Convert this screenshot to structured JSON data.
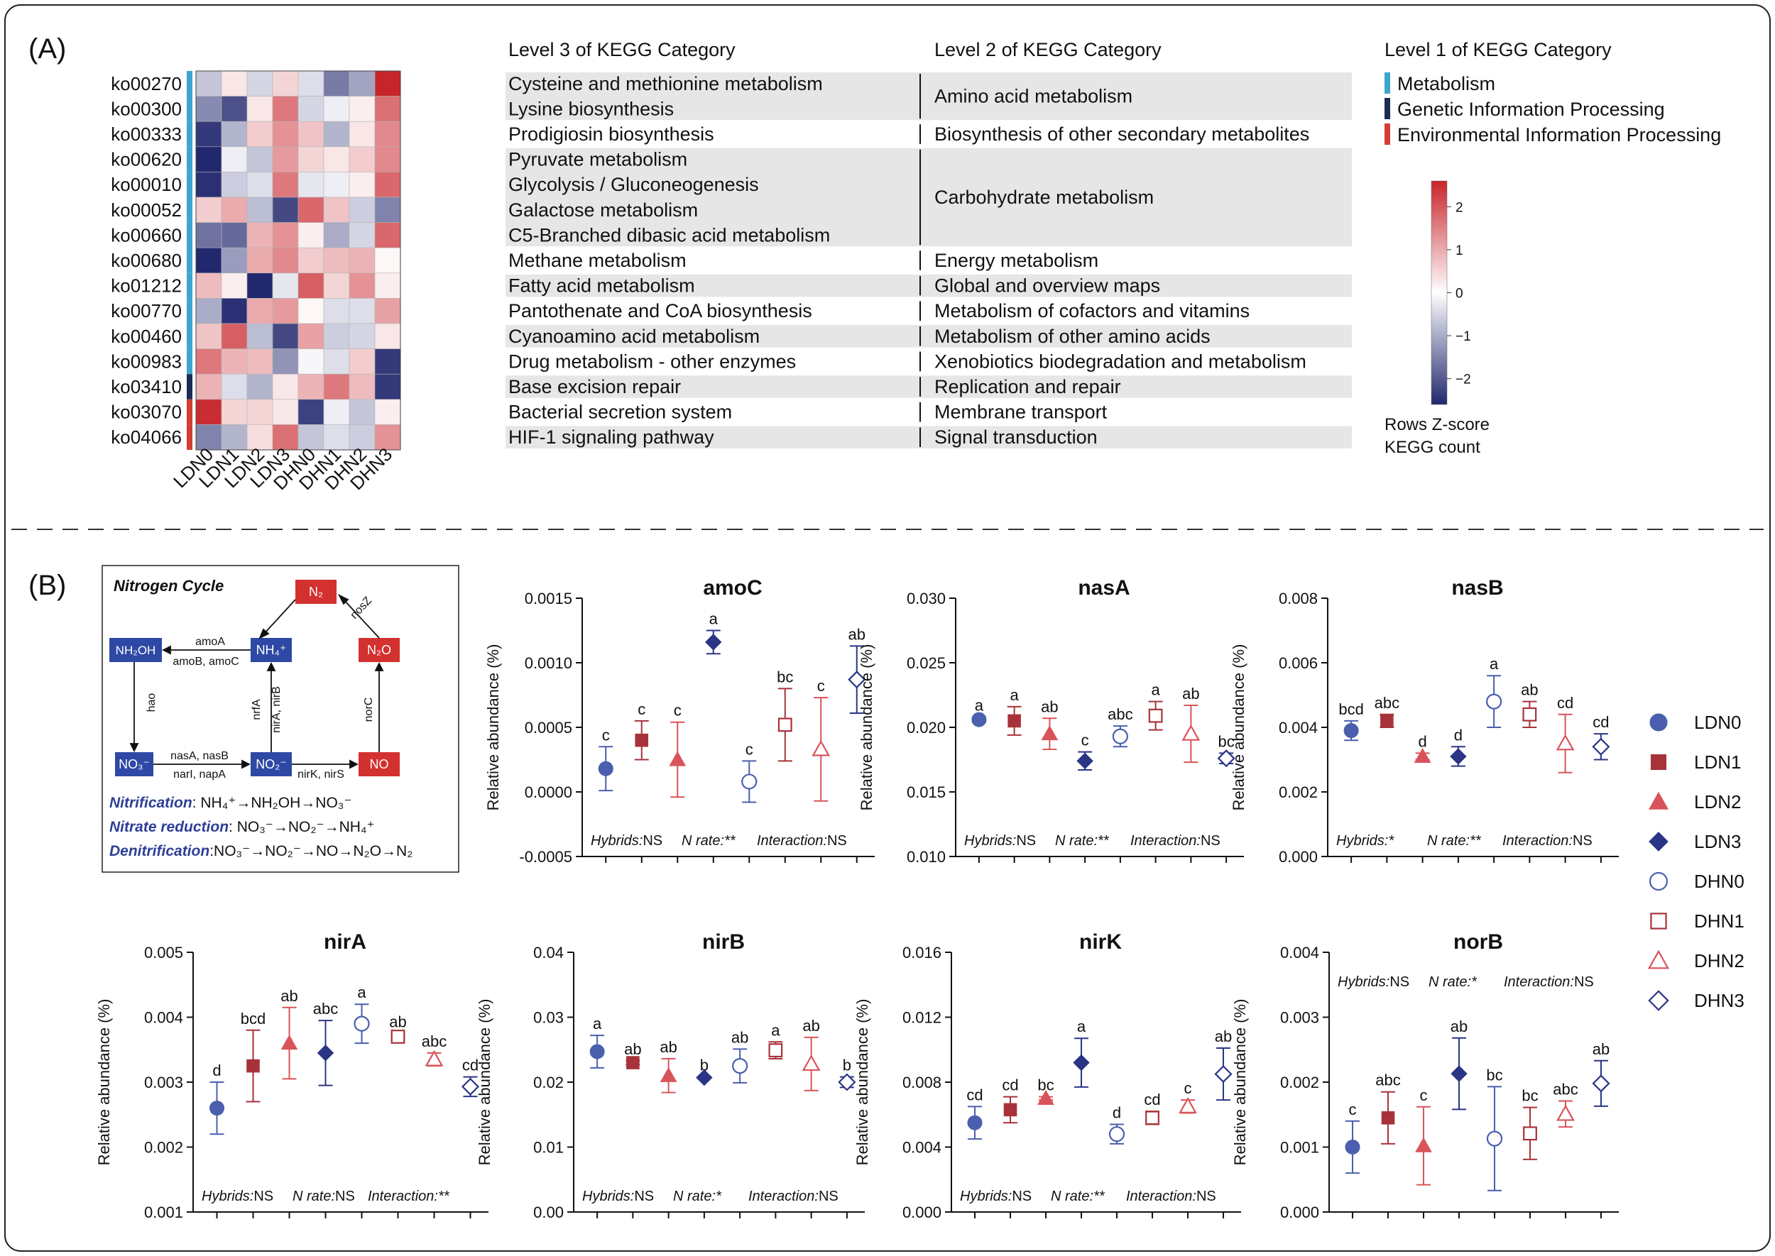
{
  "panel_a": {
    "label": "(A)",
    "header_level3": "Level 3 of KEGG Category",
    "header_level2": "Level 2 of KEGG Category",
    "header_level1": "Level 1 of KEGG Category",
    "rows": [
      {
        "id": "ko00270",
        "level1": "Metabolism",
        "pathway": "Cysteine and methionine metabolism",
        "z": [
          -0.7,
          0.3,
          -0.5,
          0.5,
          -0.4,
          -1.6,
          -1.1,
          2.6
        ]
      },
      {
        "id": "ko00300",
        "level1": "Metabolism",
        "pathway": "Lysine biosynthesis",
        "z": [
          -1.4,
          -2.1,
          0.3,
          1.6,
          -0.5,
          -0.2,
          0.2,
          1.7
        ]
      },
      {
        "id": "ko00333",
        "level1": "Metabolism",
        "pathway": "Prodigiosin biosynthesis",
        "z": [
          -2.4,
          -0.9,
          0.6,
          1.3,
          0.7,
          -0.9,
          0.3,
          1.4
        ]
      },
      {
        "id": "ko00620",
        "level1": "Metabolism",
        "pathway": "Pyruvate metabolism",
        "z": [
          -2.6,
          -0.2,
          -0.7,
          1.2,
          0.5,
          0.3,
          0.6,
          1.4
        ]
      },
      {
        "id": "ko00010",
        "level1": "Metabolism",
        "pathway": "Glycolysis / Gluconeogenesis",
        "z": [
          -2.5,
          -0.6,
          -0.4,
          1.6,
          -0.3,
          -0.2,
          0.2,
          1.8
        ]
      },
      {
        "id": "ko00052",
        "level1": "Metabolism",
        "pathway": "Galactose metabolism",
        "z": [
          0.6,
          1.0,
          -0.8,
          -2.2,
          1.8,
          0.7,
          -0.6,
          -1.5
        ]
      },
      {
        "id": "ko00660",
        "level1": "Metabolism",
        "pathway": "C5-Branched dibasic acid metabolism",
        "z": [
          -1.7,
          -1.8,
          0.9,
          1.3,
          0.2,
          -1.0,
          -0.5,
          1.8
        ]
      },
      {
        "id": "ko00680",
        "level1": "Metabolism",
        "pathway": "Methane metabolism",
        "z": [
          -2.6,
          -1.2,
          1.0,
          1.4,
          0.6,
          0.8,
          0.9,
          0.1
        ]
      },
      {
        "id": "ko01212",
        "level1": "Metabolism",
        "pathway": "Fatty acid metabolism",
        "z": [
          0.8,
          0.2,
          -2.6,
          -0.3,
          1.9,
          0.5,
          1.3,
          0.2
        ]
      },
      {
        "id": "ko00770",
        "level1": "Metabolism",
        "pathway": "Pantothenate and CoA biosynthesis",
        "z": [
          -1.0,
          -2.5,
          1.0,
          1.2,
          0.1,
          -0.4,
          -0.4,
          1.1
        ]
      },
      {
        "id": "ko00460",
        "level1": "Metabolism",
        "pathway": "Cyanoamino acid metabolism",
        "z": [
          0.7,
          1.9,
          -0.8,
          -2.2,
          1.1,
          -0.6,
          -0.5,
          0.3
        ]
      },
      {
        "id": "ko00983",
        "level1": "Metabolism",
        "pathway": "Drug metabolism - other enzymes",
        "z": [
          1.6,
          0.9,
          0.8,
          -1.3,
          -0.1,
          -0.4,
          0.6,
          -2.4
        ]
      },
      {
        "id": "ko03410",
        "level1": "Genetic Information Processing",
        "pathway": "Base excision repair",
        "z": [
          0.9,
          -0.4,
          -0.9,
          0.3,
          0.9,
          1.6,
          0.8,
          -2.4
        ]
      },
      {
        "id": "ko03070",
        "level1": "Environmental Information Processing",
        "pathway": "Bacterial secretion system",
        "z": [
          2.5,
          0.5,
          0.5,
          0.3,
          -2.3,
          -0.2,
          -0.7,
          0.2
        ]
      },
      {
        "id": "ko04066",
        "level1": "Environmental Information Processing",
        "pathway": "HIF-1 signaling pathway",
        "z": [
          -1.5,
          -0.9,
          0.4,
          1.7,
          -0.7,
          -0.4,
          -0.6,
          1.3
        ]
      }
    ],
    "level2_groups": [
      {
        "label": "Amino acid metabolism",
        "start": 0,
        "end": 1
      },
      {
        "label": "Biosynthesis of other secondary metabolites",
        "start": 2,
        "end": 2
      },
      {
        "label": "Carbohydrate metabolism",
        "start": 3,
        "end": 6
      },
      {
        "label": "Energy metabolism",
        "start": 7,
        "end": 7
      },
      {
        "label": "Global and overview maps",
        "start": 8,
        "end": 8
      },
      {
        "label": "Metabolism of cofactors and vitamins",
        "start": 9,
        "end": 9
      },
      {
        "label": "Metabolism of other amino acids",
        "start": 10,
        "end": 10
      },
      {
        "label": "Xenobiotics biodegradation and metabolism",
        "start": 11,
        "end": 11
      },
      {
        "label": "Replication and repair",
        "start": 12,
        "end": 12
      },
      {
        "label": "Membrane transport",
        "start": 13,
        "end": 13
      },
      {
        "label": "Signal transduction",
        "start": 14,
        "end": 14
      }
    ],
    "columns": [
      "LDN0",
      "LDN1",
      "LDN2",
      "LDN3",
      "DHN0",
      "DHN1",
      "DHN2",
      "DHN3"
    ],
    "level1_legend": [
      {
        "label": "Metabolism",
        "color": "#3da5d0"
      },
      {
        "label": "Genetic Information Processing",
        "color": "#1c2c55"
      },
      {
        "label": "Environmental Information Processing",
        "color": "#d33c32"
      }
    ],
    "colorbar": {
      "ticks": [
        "2",
        "1",
        "0",
        "−1",
        "−2"
      ],
      "tick_values": [
        2,
        1,
        0,
        -1,
        -2
      ],
      "range": [
        -2.6,
        2.6
      ],
      "label1": "Rows Z-score",
      "label2": "KEGG count",
      "low_color": "#22286e",
      "mid_color": "#ffffff",
      "high_color": "#c8242b"
    }
  },
  "panel_b": {
    "label": "(B)",
    "ncycle": {
      "title": "Nitrogen Cycle",
      "nodes": {
        "n2": "N₂",
        "nh4": "NH₄⁺",
        "n2o": "N₂O",
        "nh2oh": "NH₂OH",
        "no3": "NO₃⁻",
        "no2": "NO₂⁻",
        "no": "NO"
      },
      "genes": {
        "amoA": "amoA",
        "amoBC": "amoB, amoC",
        "hao": "hao",
        "nasAB": "nasA, nasB",
        "narnap": "narI, napA",
        "nirKS": "nirK, nirS",
        "nrfA": "nrfA",
        "nirAB": "nirA, nirB",
        "norC": "norC",
        "nosZ": "nosZ"
      },
      "nitrification_label": "Nitrification",
      "nitrification_eq": ": NH₄⁺→NH₂OH→NO₃⁻",
      "reduction_label": "Nitrate reduction",
      "reduction_eq": ":  NO₃⁻→NO₂⁻→NH₄⁺",
      "denitrification_label": "Denitrification",
      "denitrification_eq": ":NO₃⁻→NO₂⁻→NO→N₂O→N₂"
    },
    "legend": [
      {
        "label": "LDN0",
        "marker": "circle",
        "fill": true,
        "color": "#4a5fad"
      },
      {
        "label": "LDN1",
        "marker": "square",
        "fill": true,
        "color": "#a8323a"
      },
      {
        "label": "LDN2",
        "marker": "triangle",
        "fill": true,
        "color": "#d9545a"
      },
      {
        "label": "LDN3",
        "marker": "diamond",
        "fill": true,
        "color": "#2a3585"
      },
      {
        "label": "DHN0",
        "marker": "circle",
        "fill": false,
        "color": "#4a5fad"
      },
      {
        "label": "DHN1",
        "marker": "square",
        "fill": false,
        "color": "#a8323a"
      },
      {
        "label": "DHN2",
        "marker": "triangle",
        "fill": false,
        "color": "#d9545a"
      },
      {
        "label": "DHN3",
        "marker": "diamond",
        "fill": false,
        "color": "#2a3585"
      }
    ]
  },
  "chart_data": [
    {
      "type": "scatter",
      "title": "amoC",
      "ylabel": "Relative abundance (%)",
      "ylim": [
        -0.0005,
        0.0015
      ],
      "yticks": [
        -0.0005,
        0,
        0.0005,
        0.001,
        0.0015
      ],
      "ytick_labels": [
        "-0.0005",
        "0.0000",
        "0.0005",
        "0.0010",
        "0.0015"
      ],
      "categories": [
        "LDN0",
        "LDN1",
        "LDN2",
        "LDN3",
        "DHN0",
        "DHN1",
        "DHN2",
        "DHN3"
      ],
      "values": [
        0.00018,
        0.0004,
        0.00025,
        0.00116,
        8e-05,
        0.00052,
        0.00033,
        0.00087
      ],
      "errors": [
        0.00017,
        0.00015,
        0.00029,
        9e-05,
        0.00016,
        0.00028,
        0.0004,
        0.00026
      ],
      "letters": [
        "c",
        "c",
        "c",
        "a",
        "c",
        "bc",
        "c",
        "ab"
      ],
      "stats": {
        "hybrids": "Hybrids:",
        "hybrids_sig": "NS",
        "nrate": "N rate:**",
        "nrate_sig": "",
        "interaction": "Interaction:",
        "interaction_sig": "NS",
        "position": "bottom"
      }
    },
    {
      "type": "scatter",
      "title": "nasA",
      "ylabel": "Relative abundance (%)",
      "ylim": [
        0.01,
        0.03
      ],
      "yticks": [
        0.01,
        0.015,
        0.02,
        0.025,
        0.03
      ],
      "ytick_labels": [
        "0.010",
        "0.015",
        "0.020",
        "0.025",
        "0.030"
      ],
      "categories": [
        "LDN0",
        "LDN1",
        "LDN2",
        "LDN3",
        "DHN0",
        "DHN1",
        "DHN2",
        "DHN3"
      ],
      "values": [
        0.0206,
        0.0205,
        0.0195,
        0.0174,
        0.0193,
        0.0209,
        0.0195,
        0.0176
      ],
      "errors": [
        0.0002,
        0.0011,
        0.0012,
        0.0007,
        0.0008,
        0.0011,
        0.0022,
        0.0004
      ],
      "letters": [
        "a",
        "a",
        "ab",
        "c",
        "abc",
        "a",
        "ab",
        "bc"
      ],
      "stats": {
        "hybrids": "Hybrids:",
        "hybrids_sig": "NS",
        "nrate": "N rate:**",
        "nrate_sig": "",
        "interaction": "Interaction:",
        "interaction_sig": "NS",
        "position": "bottom"
      }
    },
    {
      "type": "scatter",
      "title": "nasB",
      "ylabel": "Relative abundance (%)",
      "ylim": [
        0,
        0.008
      ],
      "yticks": [
        0,
        0.002,
        0.004,
        0.006,
        0.008
      ],
      "ytick_labels": [
        "0.000",
        "0.002",
        "0.004",
        "0.006",
        "0.008"
      ],
      "categories": [
        "LDN0",
        "LDN1",
        "LDN2",
        "LDN3",
        "DHN0",
        "DHN1",
        "DHN2",
        "DHN3"
      ],
      "values": [
        0.0039,
        0.0042,
        0.0031,
        0.0031,
        0.0048,
        0.0044,
        0.0035,
        0.0034
      ],
      "errors": [
        0.0003,
        0.0002,
        0.0001,
        0.0003,
        0.0008,
        0.0004,
        0.0009,
        0.0004
      ],
      "letters": [
        "bcd",
        "abc",
        "d",
        "d",
        "a",
        "ab",
        "cd",
        "cd"
      ],
      "stats": {
        "hybrids": "Hybrids:*",
        "hybrids_sig": "",
        "nrate": "N rate:**",
        "nrate_sig": "",
        "interaction": "Interaction:",
        "interaction_sig": "NS",
        "position": "bottom"
      }
    },
    {
      "type": "scatter",
      "title": "nirA",
      "ylabel": "Relative abundance (%)",
      "ylim": [
        0.001,
        0.005
      ],
      "yticks": [
        0.001,
        0.002,
        0.003,
        0.004,
        0.005
      ],
      "ytick_labels": [
        "0.001",
        "0.002",
        "0.003",
        "0.004",
        "0.005"
      ],
      "categories": [
        "LDN0",
        "LDN1",
        "LDN2",
        "LDN3",
        "DHN0",
        "DHN1",
        "DHN2",
        "DHN3"
      ],
      "values": [
        0.0026,
        0.00325,
        0.0036,
        0.00345,
        0.0039,
        0.0037,
        0.00335,
        0.00293
      ],
      "errors": [
        0.0004,
        0.00055,
        0.00055,
        0.0005,
        0.0003,
        5e-05,
        0.0001,
        0.00015
      ],
      "letters": [
        "d",
        "bcd",
        "ab",
        "abc",
        "a",
        "ab",
        "abc",
        "cd"
      ],
      "stats": {
        "hybrids": "Hybrids:",
        "hybrids_sig": "NS",
        "nrate": "N rate:",
        "nrate_sig": "NS",
        "interaction": "Interaction:**",
        "interaction_sig": "",
        "position": "bottom"
      }
    },
    {
      "type": "scatter",
      "title": "nirB",
      "ylabel": "Relative abundance (%)",
      "ylim": [
        0,
        0.04
      ],
      "yticks": [
        0,
        0.01,
        0.02,
        0.03,
        0.04
      ],
      "ytick_labels": [
        "0.00",
        "0.01",
        "0.02",
        "0.03",
        "0.04"
      ],
      "categories": [
        "LDN0",
        "LDN1",
        "LDN2",
        "LDN3",
        "DHN0",
        "DHN1",
        "DHN2",
        "DHN3"
      ],
      "values": [
        0.0247,
        0.023,
        0.021,
        0.0207,
        0.0225,
        0.0249,
        0.0228,
        0.02
      ],
      "errors": [
        0.0025,
        0.0003,
        0.0026,
        0.0001,
        0.0026,
        0.0013,
        0.0041,
        0.0008
      ],
      "letters": [
        "a",
        "ab",
        "ab",
        "b",
        "ab",
        "a",
        "ab",
        "b"
      ],
      "stats": {
        "hybrids": "Hybrids:",
        "hybrids_sig": "NS",
        "nrate": "N rate:*",
        "nrate_sig": "",
        "interaction": "Interaction:",
        "interaction_sig": "NS",
        "position": "bottom"
      }
    },
    {
      "type": "scatter",
      "title": "nirK",
      "ylabel": "Relative abundance (%)",
      "ylim": [
        0,
        0.016
      ],
      "yticks": [
        0,
        0.004,
        0.008,
        0.012,
        0.016
      ],
      "ytick_labels": [
        "0.000",
        "0.004",
        "0.008",
        "0.012",
        "0.016"
      ],
      "categories": [
        "LDN0",
        "LDN1",
        "LDN2",
        "LDN3",
        "DHN0",
        "DHN1",
        "DHN2",
        "DHN3"
      ],
      "values": [
        0.0055,
        0.0063,
        0.007,
        0.0092,
        0.0048,
        0.0058,
        0.0065,
        0.0085
      ],
      "errors": [
        0.001,
        0.0008,
        0.0001,
        0.0015,
        0.0006,
        0.0004,
        0.0004,
        0.0016
      ],
      "letters": [
        "cd",
        "cd",
        "bc",
        "a",
        "d",
        "cd",
        "c",
        "ab"
      ],
      "stats": {
        "hybrids": "Hybrids:",
        "hybrids_sig": "NS",
        "nrate": "N rate:**",
        "nrate_sig": "",
        "interaction": "Interaction:",
        "interaction_sig": "NS",
        "position": "bottom"
      }
    },
    {
      "type": "scatter",
      "title": "norB",
      "ylabel": "Relative abundance (%)",
      "ylim": [
        0,
        0.004
      ],
      "yticks": [
        0,
        0.001,
        0.002,
        0.003,
        0.004
      ],
      "ytick_labels": [
        "0.000",
        "0.001",
        "0.002",
        "0.003",
        "0.004"
      ],
      "categories": [
        "LDN0",
        "LDN1",
        "LDN2",
        "LDN3",
        "DHN0",
        "DHN1",
        "DHN2",
        "DHN3"
      ],
      "values": [
        0.001,
        0.00145,
        0.00102,
        0.00213,
        0.00113,
        0.00121,
        0.00151,
        0.00198
      ],
      "errors": [
        0.0004,
        0.0004,
        0.0006,
        0.00055,
        0.0008,
        0.0004,
        0.0002,
        0.00035
      ],
      "letters": [
        "c",
        "abc",
        "c",
        "ab",
        "bc",
        "bc",
        "abc",
        "ab"
      ],
      "stats": {
        "hybrids": "Hybrids:",
        "hybrids_sig": "NS",
        "nrate": "N rate:*",
        "nrate_sig": "",
        "interaction": "Interaction:",
        "interaction_sig": "NS",
        "position": "top"
      }
    }
  ]
}
